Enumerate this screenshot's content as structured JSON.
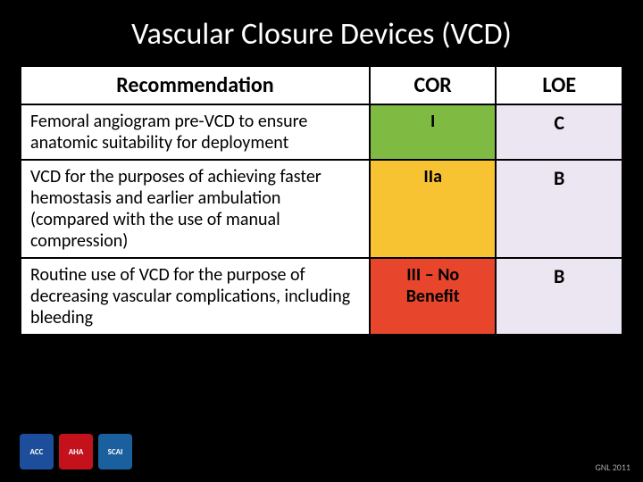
{
  "title": "Vascular Closure Devices (VCD)",
  "columns": [
    "Recommendation",
    "COR",
    "LOE"
  ],
  "rows": [
    {
      "recommendation": "Femoral angiogram pre-VCD to ensure anatomic suitability for deployment",
      "cor": "I",
      "cor_bg": "#7fba42",
      "loe": "C"
    },
    {
      "recommendation": "VCD for the purposes of achieving faster hemostasis and earlier ambulation (compared with the use of manual compression)",
      "cor": "IIa",
      "cor_bg": "#f7c332",
      "loe": "B"
    },
    {
      "recommendation": "Routine use of VCD for the purpose of decreasing vascular complications, including bleeding",
      "cor": "III – No Benefit",
      "cor_bg": "#e8452d",
      "loe": "B"
    }
  ],
  "loe_bg": "#ece6f2",
  "logos": [
    {
      "bg": "#1c4e9c",
      "label": "ACC"
    },
    {
      "bg": "#c3121b",
      "label": "AHA"
    },
    {
      "bg": "#1a5f9e",
      "label": "SCAI"
    }
  ],
  "source_note": "GNL 2011",
  "background_color": "#000000",
  "table_bg": "#ffffff",
  "border_color": "#000000",
  "title_color": "#ffffff",
  "title_fontsize": 34,
  "header_fontsize": 24,
  "cell_fontsize": 20
}
